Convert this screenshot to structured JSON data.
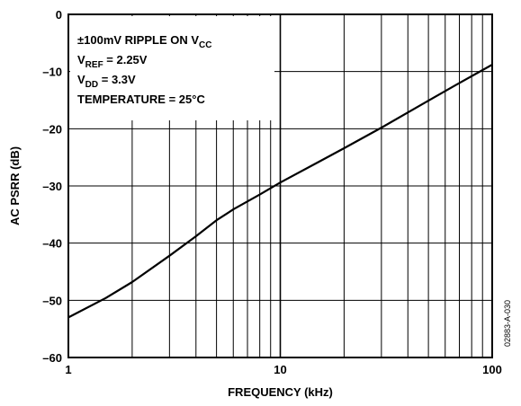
{
  "chart_data": {
    "type": "line",
    "x_scale": "log",
    "xlim": [
      1,
      100
    ],
    "ylim": [
      -60,
      0
    ],
    "grid": true,
    "xlabel": "FREQUENCY (kHz)",
    "ylabel": "AC PSRR (dB)",
    "x_ticks": [
      1,
      10,
      100
    ],
    "x_tick_labels": [
      "1",
      "10",
      "100"
    ],
    "y_ticks": [
      0,
      -10,
      -20,
      -30,
      -40,
      -50,
      -60
    ],
    "y_tick_labels": [
      "0",
      "–10",
      "–20",
      "–30",
      "–40",
      "–50",
      "–60"
    ],
    "series": [
      {
        "x": [
          1,
          1.5,
          2,
          3,
          4,
          5,
          6,
          8,
          10,
          15,
          20,
          30,
          50,
          70,
          100
        ],
        "y": [
          -53,
          -49.6,
          -46.8,
          -42.2,
          -38.8,
          -36.0,
          -34.1,
          -31.5,
          -29.4,
          -25.9,
          -23.4,
          -19.8,
          -15.1,
          -12.0,
          -8.8
        ]
      }
    ],
    "annotation": {
      "lines": [
        {
          "main": "±100mV RIPPLE ON V",
          "sub": "CC",
          "tail": ""
        },
        {
          "main": "V",
          "sub": "REF",
          "tail": " = 2.25V"
        },
        {
          "main": "V",
          "sub": "DD",
          "tail": " = 3.3V"
        },
        {
          "main": "TEMPERATURE = 25°C",
          "sub": "",
          "tail": ""
        }
      ]
    },
    "figure_code": "02883-A-030"
  }
}
